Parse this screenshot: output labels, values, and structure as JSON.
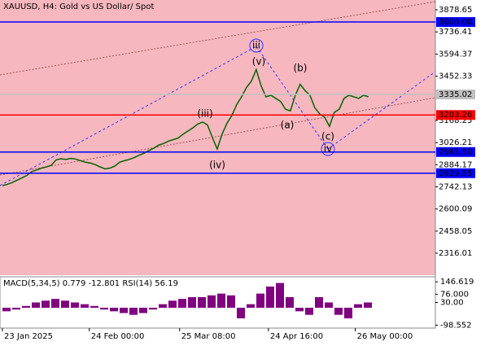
{
  "chart_data": {
    "type": "line",
    "title": "XAUUSD, H4:  Gold vs US Dollar/ Spot",
    "series": [
      {
        "name": "XAUUSD",
        "color": "#006400",
        "values": [
          2750,
          2758,
          2770,
          2785,
          2800,
          2815,
          2840,
          2850,
          2862,
          2870,
          2880,
          2915,
          2922,
          2918,
          2925,
          2920,
          2910,
          2900,
          2895,
          2885,
          2870,
          2858,
          2862,
          2875,
          2900,
          2910,
          2918,
          2930,
          2945,
          2958,
          2975,
          2990,
          3010,
          3020,
          3035,
          3045,
          3055,
          3080,
          3100,
          3120,
          3145,
          3158,
          3140,
          3060,
          2985,
          3080,
          3150,
          3200,
          3270,
          3320,
          3380,
          3420,
          3495,
          3390,
          3320,
          3330,
          3310,
          3290,
          3240,
          3230,
          3330,
          3400,
          3360,
          3330,
          3250,
          3210,
          3190,
          3130,
          3220,
          3240,
          3310,
          3330,
          3320,
          3310,
          3330,
          3320
        ]
      }
    ],
    "xlim": [
      -0.5,
      88.7
    ],
    "xticks": [
      {
        "value": 0,
        "label": "23 Jan 2025"
      },
      {
        "value": 17.8,
        "label": "24 Feb 00:00"
      },
      {
        "value": 36.3,
        "label": "25 Mar 08:00"
      },
      {
        "value": 54.5,
        "label": "24 Apr 16:00"
      },
      {
        "value": 72.3,
        "label": "26 May 00:00"
      }
    ],
    "ylim": [
      2175,
      3941.4
    ],
    "yticks": [
      3878.65,
      3736.41,
      3594.37,
      3452.33,
      3168.25,
      3026.21,
      2884.17,
      2742.13,
      2600.09,
      2458.05,
      2316.01
    ],
    "levels": [
      {
        "price": 3800,
        "label": "3800.00",
        "color": "#0000ff"
      },
      {
        "price": 3203.26,
        "color": "#ff0000"
      },
      {
        "price": 2965.5,
        "label": "2965.50",
        "color": "#0000ff"
      },
      {
        "price": 2829.55,
        "color": "#0000ff"
      },
      {
        "price": 3335.02,
        "color": "#c0c0c0"
      }
    ],
    "annotations": [
      "iii",
      "(v)",
      "(b)",
      "(a)",
      "(iii)",
      "(iv)",
      "(c)",
      "iv"
    ],
    "indicator": {
      "label": "MACD(5,34,5) 0.779 -12.801 RSI(14) 56.19",
      "color": "#800080",
      "values": [
        -20,
        -10,
        10,
        30,
        40,
        50,
        40,
        30,
        20,
        10,
        -10,
        -20,
        -30,
        -40,
        -30,
        -10,
        20,
        40,
        50,
        60,
        60,
        70,
        80,
        70,
        -60,
        20,
        80,
        120,
        140,
        60,
        -20,
        -40,
        60,
        30,
        -40,
        -60,
        20,
        30
      ],
      "ylim": [
        -115,
        175
      ],
      "yticks": [
        146.619,
        {
          "value": 76,
          "label": "76.000"
        },
        {
          "value": 30,
          "label": "30.00"
        },
        -98.552
      ]
    }
  }
}
